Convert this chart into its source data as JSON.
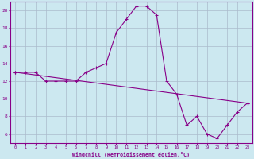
{
  "xlabel": "Windchill (Refroidissement éolien,°C)",
  "line1_x": [
    0,
    1,
    2,
    3,
    4,
    5,
    6,
    7,
    8,
    9,
    10,
    11,
    12,
    13,
    14,
    15,
    16,
    17,
    18,
    19,
    20,
    21,
    22,
    23
  ],
  "line1_y": [
    13,
    13,
    13,
    12,
    12,
    12,
    12,
    13,
    13.5,
    14,
    17.5,
    19,
    20.5,
    20.5,
    19.5,
    12,
    10.5,
    7,
    8,
    6,
    5.5,
    7,
    8.5,
    9.5
  ],
  "line2_x": [
    0,
    23
  ],
  "line2_y": [
    13,
    9.5
  ],
  "color": "#880088",
  "bg_color": "#cce8f0",
  "grid_color": "#aabbcc",
  "ylim_min": 5.0,
  "ylim_max": 21.0,
  "xlim_min": -0.5,
  "xlim_max": 23.5,
  "yticks": [
    6,
    8,
    10,
    12,
    14,
    16,
    18,
    20
  ],
  "xticks": [
    0,
    1,
    2,
    3,
    4,
    5,
    6,
    7,
    8,
    9,
    10,
    11,
    12,
    13,
    14,
    15,
    16,
    17,
    18,
    19,
    20,
    21,
    22,
    23
  ]
}
